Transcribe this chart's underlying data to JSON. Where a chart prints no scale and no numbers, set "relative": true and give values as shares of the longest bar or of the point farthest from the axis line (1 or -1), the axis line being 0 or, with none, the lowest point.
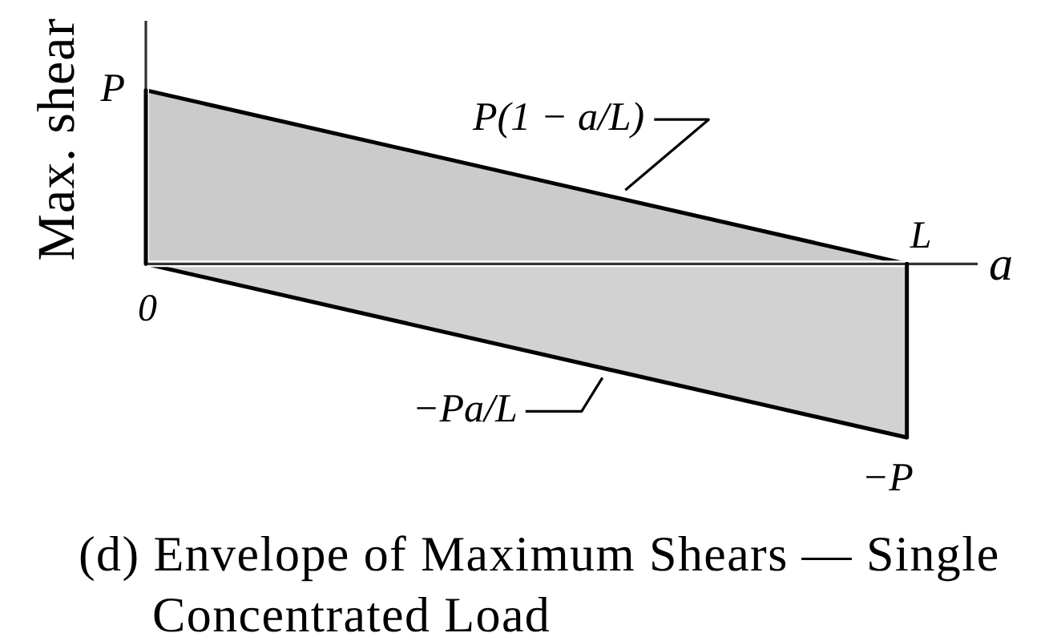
{
  "chart_data": {
    "type": "area",
    "title": "(d) Envelope of Maximum Shears — Single Concentrated Load",
    "ylabel": "Max. shear",
    "xlabel": "a",
    "relative": true,
    "categories": [
      "0",
      "L"
    ],
    "series": [
      {
        "name": "P(1 − a/L)",
        "color": "#cbcbcb",
        "values": [
          1,
          0
        ]
      },
      {
        "name": "−Pa/L",
        "color": "#d2d2d2",
        "values": [
          0,
          -1
        ]
      }
    ],
    "annotations": [
      {
        "text": "P",
        "x": "0",
        "y": 1
      },
      {
        "text": "−P",
        "x": "L",
        "y": -1
      }
    ]
  }
}
